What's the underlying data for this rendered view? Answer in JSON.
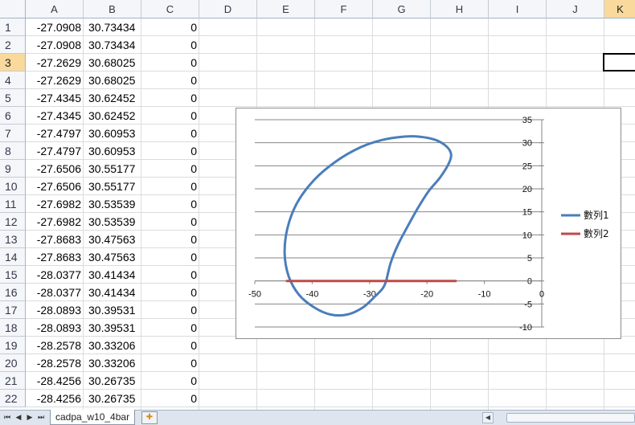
{
  "sheet": {
    "columns": [
      "A",
      "B",
      "C",
      "D",
      "E",
      "F",
      "G",
      "H",
      "I",
      "J",
      "K"
    ],
    "selected_column": "K",
    "selected_row": 3,
    "rows": [
      {
        "n": "1",
        "a": "-27.0908",
        "b": "30.73434",
        "c": "0"
      },
      {
        "n": "2",
        "a": "-27.0908",
        "b": "30.73434",
        "c": "0"
      },
      {
        "n": "3",
        "a": "-27.2629",
        "b": "30.68025",
        "c": "0"
      },
      {
        "n": "4",
        "a": "-27.2629",
        "b": "30.68025",
        "c": "0"
      },
      {
        "n": "5",
        "a": "-27.4345",
        "b": "30.62452",
        "c": "0"
      },
      {
        "n": "6",
        "a": "-27.4345",
        "b": "30.62452",
        "c": "0"
      },
      {
        "n": "7",
        "a": "-27.4797",
        "b": "30.60953",
        "c": "0"
      },
      {
        "n": "8",
        "a": "-27.4797",
        "b": "30.60953",
        "c": "0"
      },
      {
        "n": "9",
        "a": "-27.6506",
        "b": "30.55177",
        "c": "0"
      },
      {
        "n": "10",
        "a": "-27.6506",
        "b": "30.55177",
        "c": "0"
      },
      {
        "n": "11",
        "a": "-27.6982",
        "b": "30.53539",
        "c": "0"
      },
      {
        "n": "12",
        "a": "-27.6982",
        "b": "30.53539",
        "c": "0"
      },
      {
        "n": "13",
        "a": "-27.8683",
        "b": "30.47563",
        "c": "0"
      },
      {
        "n": "14",
        "a": "-27.8683",
        "b": "30.47563",
        "c": "0"
      },
      {
        "n": "15",
        "a": "-28.0377",
        "b": "30.41434",
        "c": "0"
      },
      {
        "n": "16",
        "a": "-28.0377",
        "b": "30.41434",
        "c": "0"
      },
      {
        "n": "17",
        "a": "-28.0893",
        "b": "30.39531",
        "c": "0"
      },
      {
        "n": "18",
        "a": "-28.0893",
        "b": "30.39531",
        "c": "0"
      },
      {
        "n": "19",
        "a": "-28.2578",
        "b": "30.33206",
        "c": "0"
      },
      {
        "n": "20",
        "a": "-28.2578",
        "b": "30.33206",
        "c": "0"
      },
      {
        "n": "21",
        "a": "-28.4256",
        "b": "30.26735",
        "c": "0"
      },
      {
        "n": "22",
        "a": "-28.4256",
        "b": "30.26735",
        "c": "0"
      }
    ]
  },
  "chart_data": {
    "type": "scatter",
    "title": "",
    "xlabel": "",
    "ylabel": "",
    "xlim": [
      -50,
      0
    ],
    "ylim": [
      -10,
      35
    ],
    "xticks": [
      "-50",
      "-40",
      "-30",
      "-20",
      "-10",
      "0"
    ],
    "yticks": [
      "-10",
      "-5",
      "0",
      "5",
      "10",
      "15",
      "20",
      "25",
      "30",
      "35"
    ],
    "grid": "horizontal",
    "legend_position": "right",
    "series": [
      {
        "name": "數列1",
        "color": "#4a7ebb",
        "points": [
          [
            -27.1,
            0.0
          ],
          [
            -26.3,
            4.0
          ],
          [
            -25.0,
            8.0
          ],
          [
            -23.3,
            12.0
          ],
          [
            -21.5,
            16.0
          ],
          [
            -19.7,
            19.5
          ],
          [
            -17.7,
            22.5
          ],
          [
            -16.2,
            25.5
          ],
          [
            -15.8,
            27.5
          ],
          [
            -16.6,
            29.2
          ],
          [
            -18.5,
            30.6
          ],
          [
            -21.2,
            31.3
          ],
          [
            -24.3,
            31.3
          ],
          [
            -27.8,
            30.6
          ],
          [
            -31.6,
            29.0
          ],
          [
            -35.8,
            26.0
          ],
          [
            -39.6,
            22.0
          ],
          [
            -42.6,
            17.0
          ],
          [
            -44.3,
            11.5
          ],
          [
            -44.8,
            6.0
          ],
          [
            -44.1,
            1.0
          ],
          [
            -42.3,
            -3.0
          ],
          [
            -39.6,
            -5.8
          ],
          [
            -36.8,
            -7.3
          ],
          [
            -33.9,
            -7.3
          ],
          [
            -31.2,
            -5.8
          ],
          [
            -29.0,
            -3.3
          ],
          [
            -27.7,
            -1.6
          ],
          [
            -27.1,
            0.0
          ]
        ]
      },
      {
        "name": "數列2",
        "color": "#be4b48",
        "points": [
          [
            -44.4,
            0.0
          ],
          [
            -15.0,
            0.0
          ]
        ]
      }
    ]
  },
  "footer": {
    "sheet_tab": "cadpa_w10_4bar",
    "nav_first": "⏮",
    "nav_prev": "◀",
    "nav_next": "▶",
    "nav_last": "⏭",
    "new_sheet": "✚",
    "scroll_left": "◀",
    "scroll_right": "▶"
  }
}
